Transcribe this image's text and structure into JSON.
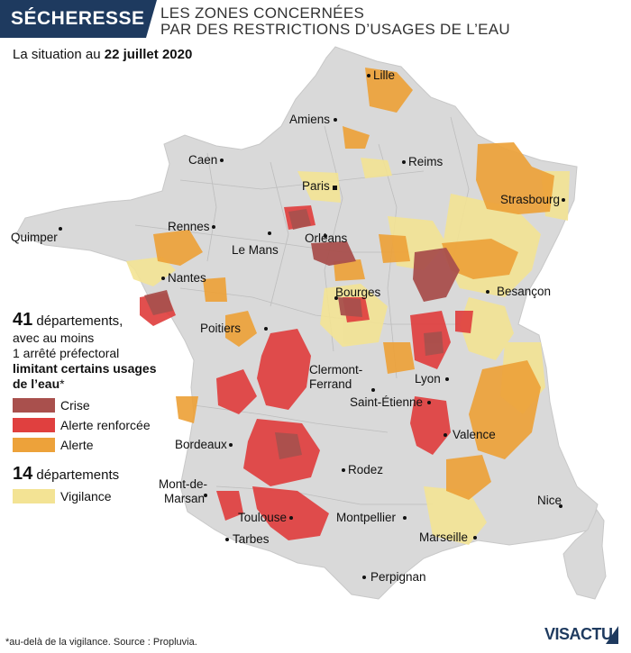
{
  "header": {
    "tag": "SÉCHERESSE",
    "title_line1": "LES ZONES CONCERNÉES",
    "title_line2": "PAR DES RESTRICTIONS D’USAGES DE L’EAU",
    "date_prefix": "La situation au ",
    "date": "22 juillet 2020"
  },
  "cities": {
    "lille": "Lille",
    "amiens": "Amiens",
    "caen": "Caen",
    "reims": "Reims",
    "paris": "Paris",
    "strasbourg": "Strasbourg",
    "rennes": "Rennes",
    "quimper": "Quimper",
    "le_mans": "Le Mans",
    "orleans": "Orléans",
    "nantes": "Nantes",
    "bourges": "Bourges",
    "besancon": "Besançon",
    "poitiers": "Poitiers",
    "clermont1": "Clermont-",
    "clermont2": "Ferrand",
    "lyon": "Lyon",
    "saint_etienne": "Saint-Étienne",
    "valence": "Valence",
    "bordeaux": "Bordeaux",
    "rodez": "Rodez",
    "mont1": "Mont-de-",
    "mont2": "Marsan",
    "nice": "Nice",
    "toulouse": "Toulouse",
    "montpellier": "Montpellier",
    "marseille": "Marseille",
    "tarbes": "Tarbes",
    "perpignan": "Perpignan"
  },
  "legend": {
    "count1": "41",
    "count1_label": " départements,",
    "line2": "avec au moins",
    "line3": "1 arrêté préfectoral",
    "line4": "limitant certains usages",
    "line5": "de l’eau",
    "asterisk": "*",
    "items": [
      {
        "label": "Crise",
        "color": "#a9504d"
      },
      {
        "label": "Alerte renforcée",
        "color": "#e0403f"
      },
      {
        "label": "Alerte",
        "color": "#eda23a"
      }
    ],
    "count2": "14",
    "count2_label": " départements",
    "vigilance": {
      "label": "Vigilance",
      "color": "#f3e394"
    }
  },
  "footer": {
    "note": "*au-delà de la vigilance. Source : Propluvia.",
    "logo": "VISACTU"
  },
  "colors": {
    "land": "#d9d9d9",
    "border": "#bdbdbd",
    "header": "#1e3a5f"
  }
}
